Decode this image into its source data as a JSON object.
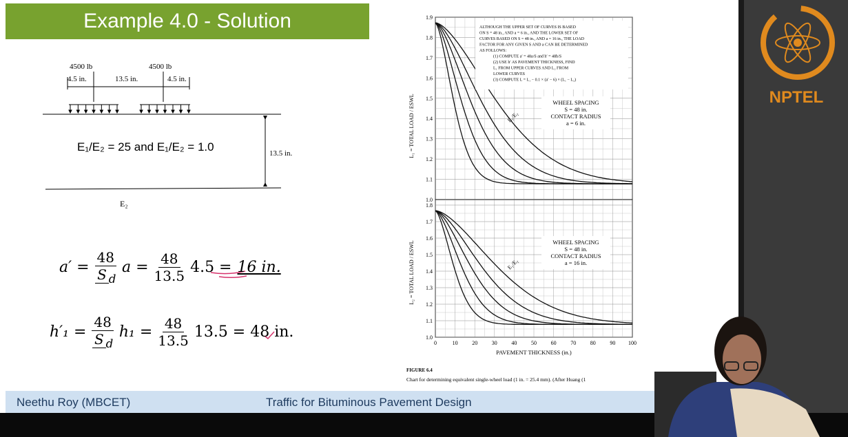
{
  "header": {
    "title": "Example 4.0 - Solution"
  },
  "diagram": {
    "load_left": "4500 lb",
    "load_right": "4500 lb",
    "dim_left": "4.5 in.",
    "dim_middle": "13.5 in.",
    "dim_right": "4.5 in.",
    "ratio": "E₁/E₂ = 25 and E₁/E₂ = 1.0",
    "depth": "13.5 in.",
    "bottom_layer": "E₂"
  },
  "equations": [
    {
      "lhs": "a′ =",
      "num1": "48",
      "den1": "S",
      "den1_sub": "d",
      "mid": "a =",
      "num2": "48",
      "den2": "13.5",
      "tail": "4.5 =",
      "result": "16 in."
    },
    {
      "lhs": "h′₁ =",
      "num1": "48",
      "den1": "S",
      "den1_sub": "d",
      "mid": "h₁ =",
      "num2": "48",
      "den2": "13.5",
      "tail": "13.5 = 48 in."
    }
  ],
  "figure": {
    "y_ticks_top": [
      "1.9",
      "1.8",
      "1.7",
      "1.6",
      "1.5",
      "1.4",
      "1.3",
      "1.2",
      "1.1",
      "1.0"
    ],
    "y_ticks_bottom": [
      "1.8",
      "1.7",
      "1.6",
      "1.5",
      "1.4",
      "1.3",
      "1.2",
      "1.1",
      "1.0"
    ],
    "x_ticks": [
      "0",
      "10",
      "20",
      "30",
      "40",
      "50",
      "60",
      "70",
      "80",
      "90",
      "100"
    ],
    "x_label": "PAVEMENT THICKNESS (in.)",
    "y_label_top": "L₁ = TOTAL LOAD / ESWL",
    "y_label_bottom": "L₂ = TOTAL LOAD / ESWL",
    "note": [
      "ALTHOUGH THE UPPER SET OF CURVES IS BASED",
      "ON S = 48 in., AND a = 6 in., AND THE LOWER SET OF",
      "CURVES BASED ON S = 48 in., AND a = 16 in., THE LOAD",
      "FACTOR FOR ANY GIVEN S AND a CAN BE DETERMINED",
      "AS FOLLOWS:",
      "(1) COMPUTE a′ = 48a/S and h′ = 48h/S",
      "(2) USE h′ AS PAVEMENT THICKNESS, FIND",
      "L₁ FROM UPPER CURVES AND L₂ FROM",
      "LOWER CURVES",
      "(3) COMPUTE L = L₁ − 0.1 × (a′ − 6) × (L₁ − L₂)"
    ],
    "top_legend": [
      "WHEEL SPACING",
      "S = 48 in.",
      "CONTACT RADIUS",
      "a = 6 in."
    ],
    "bottom_legend": [
      "WHEEL SPACING",
      "S = 48 in.",
      "CONTACT RADIUS",
      "a = 16 in."
    ],
    "curve_label": "E₁/E₂",
    "caption_title": "FIGURE 6.4",
    "caption": "Chart for determining equivalent single-wheel load (1 in. = 25.4 mm). (After Huang (1"
  },
  "footer": {
    "author": "Neethu Roy (MBCET)",
    "course": "Traffic for Bituminous Pavement Design"
  },
  "logo": {
    "name": "NPTEL"
  }
}
